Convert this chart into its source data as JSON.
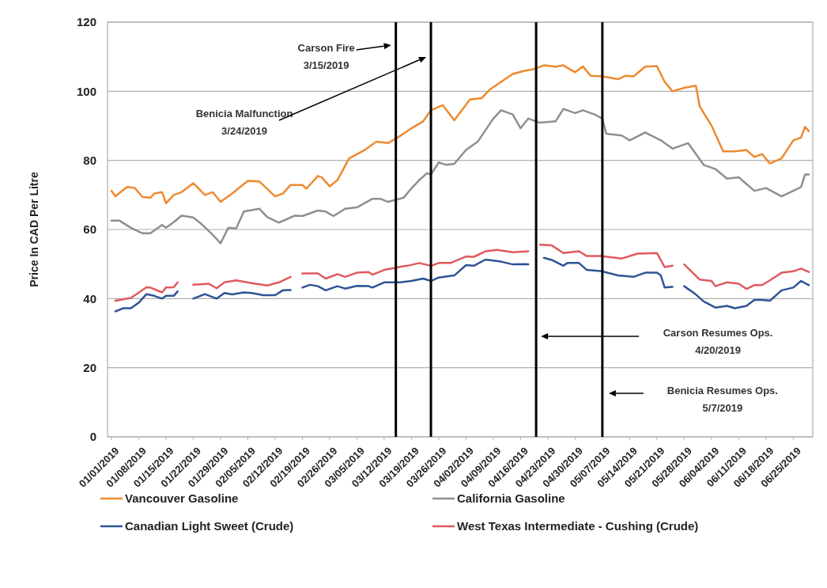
{
  "chart_data": {
    "type": "line",
    "ylabel": "Price In CAD Per Litre",
    "xlim": [
      "2018-12-31",
      "2019-06-30"
    ],
    "ylim": [
      0,
      120
    ],
    "yticks": [
      0,
      20,
      40,
      60,
      80,
      100,
      120
    ],
    "xticks": [
      {
        "value": "2019-01-01",
        "label": "01/01/2019"
      },
      {
        "value": "2019-01-08",
        "label": "01/08/2019"
      },
      {
        "value": "2019-01-15",
        "label": "01/15/2019"
      },
      {
        "value": "2019-01-22",
        "label": "01/22/2019"
      },
      {
        "value": "2019-01-29",
        "label": "01/29/2019"
      },
      {
        "value": "2019-02-05",
        "label": "02/05/2019"
      },
      {
        "value": "2019-02-12",
        "label": "02/12/2019"
      },
      {
        "value": "2019-02-19",
        "label": "02/19/2019"
      },
      {
        "value": "2019-02-26",
        "label": "02/26/2019"
      },
      {
        "value": "2019-03-05",
        "label": "03/05/2019"
      },
      {
        "value": "2019-03-12",
        "label": "03/12/2019"
      },
      {
        "value": "2019-03-19",
        "label": "03/19/2019"
      },
      {
        "value": "2019-03-26",
        "label": "03/26/2019"
      },
      {
        "value": "2019-04-02",
        "label": "04/02/2019"
      },
      {
        "value": "2019-04-09",
        "label": "04/09/2019"
      },
      {
        "value": "2019-04-16",
        "label": "04/16/2019"
      },
      {
        "value": "2019-04-23",
        "label": "04/23/2019"
      },
      {
        "value": "2019-04-30",
        "label": "04/30/2019"
      },
      {
        "value": "2019-05-07",
        "label": "05/07/2019"
      },
      {
        "value": "2019-05-14",
        "label": "05/14/2019"
      },
      {
        "value": "2019-05-21",
        "label": "05/21/2019"
      },
      {
        "value": "2019-05-28",
        "label": "05/28/2019"
      },
      {
        "value": "2019-06-04",
        "label": "06/04/2019"
      },
      {
        "value": "2019-06-11",
        "label": "06/11/2019"
      },
      {
        "value": "2019-06-18",
        "label": "06/18/2019"
      },
      {
        "value": "2019-06-25",
        "label": "06/25/2019"
      }
    ],
    "grid": "y",
    "legend": "bottom",
    "line_style": "solid",
    "marker": "none",
    "series": [
      {
        "name": "Vancouver Gasoline",
        "color": "#ee8a2f",
        "x": [
          "2019-01-01",
          "2019-01-02",
          "2019-01-05",
          "2019-01-07",
          "2019-01-09",
          "2019-01-11",
          "2019-01-12",
          "2019-01-14",
          "2019-01-15",
          "2019-01-17",
          "2019-01-19",
          "2019-01-22",
          "2019-01-25",
          "2019-01-27",
          "2019-01-29",
          "2019-02-01",
          "2019-02-05",
          "2019-02-08",
          "2019-02-12",
          "2019-02-14",
          "2019-02-16",
          "2019-02-19",
          "2019-02-20",
          "2019-02-23",
          "2019-02-24",
          "2019-02-26",
          "2019-02-28",
          "2019-03-03",
          "2019-03-07",
          "2019-03-10",
          "2019-03-13",
          "2019-03-16",
          "2019-03-19",
          "2019-03-22",
          "2019-03-24",
          "2019-03-27",
          "2019-03-30",
          "2019-04-03",
          "2019-04-06",
          "2019-04-08",
          "2019-04-11",
          "2019-04-14",
          "2019-04-17",
          "2019-04-19",
          "2019-04-22",
          "2019-04-25",
          "2019-04-27",
          "2019-04-30",
          "2019-05-02",
          "2019-05-04",
          "2019-05-07",
          "2019-05-11",
          "2019-05-13",
          "2019-05-15",
          "2019-05-18",
          "2019-05-21",
          "2019-05-23",
          "2019-05-25",
          "2019-05-28",
          "2019-05-31",
          "2019-06-01",
          "2019-06-04",
          "2019-06-07",
          "2019-06-10",
          "2019-06-13",
          "2019-06-15",
          "2019-06-17",
          "2019-06-19",
          "2019-06-22",
          "2019-06-25",
          "2019-06-27",
          "2019-06-28",
          "2019-06-29"
        ],
        "values": [
          71.2,
          69.6,
          72.3,
          72,
          69.4,
          69.2,
          70.4,
          70.8,
          67.6,
          70,
          70.8,
          73.4,
          70,
          70.8,
          68,
          70.4,
          74.1,
          73.9,
          69.6,
          70.4,
          72.9,
          72.9,
          71.8,
          75.5,
          75.1,
          72.5,
          74.3,
          80.6,
          83,
          85.4,
          85,
          87,
          89.3,
          91.3,
          94.5,
          96,
          91.6,
          97.6,
          98,
          100.4,
          102.7,
          105,
          105.9,
          106.3,
          107.5,
          107.1,
          107.5,
          105.5,
          107.2,
          104.5,
          104.3,
          103.5,
          104.5,
          104.3,
          107.1,
          107.3,
          102.7,
          100,
          101,
          101.6,
          95.6,
          90.1,
          82.6,
          82.6,
          83,
          81,
          81.8,
          79.1,
          80.6,
          85.8,
          86.6,
          89.7,
          88.5
        ]
      },
      {
        "name": "California Gasoline",
        "color": "#8f8f8f",
        "x": [
          "2019-01-01",
          "2019-01-03",
          "2019-01-06",
          "2019-01-09",
          "2019-01-11",
          "2019-01-14",
          "2019-01-15",
          "2019-01-17",
          "2019-01-19",
          "2019-01-22",
          "2019-01-24",
          "2019-01-27",
          "2019-01-29",
          "2019-01-31",
          "2019-02-02",
          "2019-02-04",
          "2019-02-08",
          "2019-02-10",
          "2019-02-13",
          "2019-02-17",
          "2019-02-19",
          "2019-02-23",
          "2019-02-25",
          "2019-02-27",
          "2019-03-02",
          "2019-03-05",
          "2019-03-09",
          "2019-03-11",
          "2019-03-13",
          "2019-03-17",
          "2019-03-19",
          "2019-03-21",
          "2019-03-23",
          "2019-03-24",
          "2019-03-26",
          "2019-03-28",
          "2019-03-30",
          "2019-04-02",
          "2019-04-05",
          "2019-04-09",
          "2019-04-11",
          "2019-04-14",
          "2019-04-16",
          "2019-04-18",
          "2019-04-21",
          "2019-04-25",
          "2019-04-27",
          "2019-04-30",
          "2019-05-02",
          "2019-05-05",
          "2019-05-07",
          "2019-05-08",
          "2019-05-12",
          "2019-05-14",
          "2019-05-18",
          "2019-05-22",
          "2019-05-25",
          "2019-05-29",
          "2019-06-02",
          "2019-06-05",
          "2019-06-08",
          "2019-06-11",
          "2019-06-15",
          "2019-06-18",
          "2019-06-22",
          "2019-06-27",
          "2019-06-28",
          "2019-06-29"
        ],
        "values": [
          62.6,
          62.6,
          60.5,
          58.9,
          58.9,
          61.3,
          60.5,
          62.1,
          64,
          63.5,
          61.7,
          58.5,
          56,
          60.5,
          60.3,
          65.2,
          66,
          63.6,
          62,
          64,
          63.9,
          65.5,
          65.2,
          63.9,
          66,
          66.4,
          68.9,
          68.9,
          68,
          69.2,
          71.9,
          74.3,
          76.3,
          75.9,
          79.4,
          78.7,
          79,
          83,
          85.4,
          92.1,
          94.5,
          93.3,
          89.3,
          92.1,
          90.9,
          91.3,
          94.9,
          93.7,
          94.5,
          93.3,
          92.1,
          87.7,
          87.2,
          85.8,
          88.1,
          85.8,
          83.4,
          85,
          78.7,
          77.5,
          74.7,
          75.1,
          71.2,
          72,
          69.6,
          72.3,
          75.9,
          75.9
        ]
      },
      {
        "name": "Canadian Light Sweet (Crude)",
        "color": "#2f5496",
        "x": [
          "2019-01-02",
          "2019-01-04",
          "2019-01-06",
          "2019-01-08",
          "2019-01-10",
          "2019-01-12",
          "2019-01-14",
          "2019-01-15",
          "2019-01-17",
          "2019-01-18",
          "2019-01-20",
          "2019-01-22",
          "2019-01-25",
          "2019-01-28",
          "2019-01-30",
          "2019-02-01",
          "2019-02-04",
          "2019-02-06",
          "2019-02-09",
          "2019-02-12",
          "2019-02-14",
          "2019-02-16",
          "2019-02-18",
          "2019-02-19",
          "2019-02-21",
          "2019-02-23",
          "2019-02-25",
          "2019-02-28",
          "2019-03-02",
          "2019-03-05",
          "2019-03-08",
          "2019-03-09",
          "2019-03-12",
          "2019-03-16",
          "2019-03-19",
          "2019-03-22",
          "2019-03-24",
          "2019-03-26",
          "2019-03-30",
          "2019-04-02",
          "2019-04-04",
          "2019-04-07",
          "2019-04-11",
          "2019-04-14",
          "2019-04-17",
          "2019-04-18",
          "2019-04-19",
          "2019-04-22",
          "2019-04-24",
          "2019-04-27",
          "2019-04-28",
          "2019-05-01",
          "2019-05-03",
          "2019-05-07",
          "2019-05-11",
          "2019-05-15",
          "2019-05-18",
          "2019-05-21",
          "2019-05-22",
          "2019-05-23",
          "2019-05-25",
          "2019-05-27",
          "2019-05-28",
          "2019-05-31",
          "2019-06-02",
          "2019-06-05",
          "2019-06-08",
          "2019-06-10",
          "2019-06-13",
          "2019-06-15",
          "2019-06-17",
          "2019-06-19",
          "2019-06-22",
          "2019-06-25",
          "2019-06-27",
          "2019-06-29"
        ],
        "values": [
          36.3,
          37.2,
          37.2,
          38.8,
          41.3,
          40.8,
          40,
          40.8,
          40.8,
          42.1,
          null,
          40,
          41.3,
          40,
          41.6,
          41.2,
          41.8,
          41.6,
          41,
          41,
          42.4,
          42.5,
          null,
          43.2,
          44,
          43.6,
          42.4,
          43.6,
          42.9,
          43.7,
          43.6,
          43.2,
          44.7,
          44.7,
          45.1,
          45.8,
          45.1,
          46.1,
          46.7,
          49.7,
          49.5,
          51.3,
          50.7,
          49.9,
          50,
          49.9,
          null,
          51.8,
          51.2,
          49.5,
          50.3,
          50.3,
          48.3,
          47.9,
          46.7,
          46.3,
          47.5,
          47.5,
          46.7,
          43.2,
          43.4,
          null,
          43.6,
          41.2,
          39.2,
          37.4,
          37.9,
          37.2,
          37.9,
          39.6,
          39.6,
          39.4,
          42.4,
          43.2,
          45.1,
          43.9
        ]
      },
      {
        "name": "West Texas Intermediate - Cushing (Crude)",
        "color": "#e05a5e",
        "x": [
          "2019-01-02",
          "2019-01-06",
          "2019-01-10",
          "2019-01-11",
          "2019-01-14",
          "2019-01-15",
          "2019-01-17",
          "2019-01-18",
          "2019-01-20",
          "2019-01-22",
          "2019-01-26",
          "2019-01-28",
          "2019-01-30",
          "2019-02-02",
          "2019-02-06",
          "2019-02-10",
          "2019-02-13",
          "2019-02-16",
          "2019-02-18",
          "2019-02-19",
          "2019-02-23",
          "2019-02-25",
          "2019-02-28",
          "2019-03-02",
          "2019-03-05",
          "2019-03-08",
          "2019-03-09",
          "2019-03-12",
          "2019-03-16",
          "2019-03-18",
          "2019-03-21",
          "2019-03-24",
          "2019-03-26",
          "2019-03-29",
          "2019-04-02",
          "2019-04-04",
          "2019-04-07",
          "2019-04-10",
          "2019-04-14",
          "2019-04-18",
          "2019-04-19",
          "2019-04-21",
          "2019-04-24",
          "2019-04-27",
          "2019-05-01",
          "2019-05-03",
          "2019-05-07",
          "2019-05-12",
          "2019-05-16",
          "2019-05-21",
          "2019-05-23",
          "2019-05-25",
          "2019-05-27",
          "2019-05-28",
          "2019-06-01",
          "2019-06-04",
          "2019-06-05",
          "2019-06-08",
          "2019-06-11",
          "2019-06-13",
          "2019-06-15",
          "2019-06-17",
          "2019-06-19",
          "2019-06-22",
          "2019-06-25",
          "2019-06-27",
          "2019-06-29"
        ],
        "values": [
          39.4,
          40.2,
          43.3,
          43.2,
          41.8,
          43.2,
          43.3,
          44.7,
          null,
          44,
          44.3,
          43,
          44.7,
          45.3,
          44.5,
          43.8,
          44.7,
          46.3,
          null,
          47.3,
          47.3,
          45.8,
          47.1,
          46.3,
          47.5,
          47.7,
          46.9,
          48.3,
          49.2,
          49.5,
          50.3,
          49.5,
          50.3,
          50.3,
          52.2,
          52.1,
          53.7,
          54.1,
          53.4,
          53.7,
          null,
          55.6,
          55.4,
          53.2,
          53.7,
          52.3,
          52.3,
          51.6,
          53,
          53.2,
          49.1,
          49.5,
          null,
          49.9,
          45.5,
          45.1,
          43.6,
          44.7,
          44.3,
          42.8,
          43.9,
          43.9,
          45.3,
          47.5,
          47.9,
          48.7,
          47.7
        ]
      }
    ],
    "ref_lines": [
      {
        "axis": "x",
        "value": "2019-03-15",
        "color": "#000000"
      },
      {
        "axis": "x",
        "value": "2019-03-24",
        "color": "#000000"
      },
      {
        "axis": "x",
        "value": "2019-04-20",
        "color": "#000000"
      },
      {
        "axis": "x",
        "value": "2019-05-07",
        "color": "#000000"
      }
    ],
    "annotations": [
      "Carson Fire\n3/15/2019",
      "Benicia Malfunction\n3/24/2019",
      "Carson Resumes Ops.\n4/20/2019",
      "Benicia Resumes Ops.\n5/7/2019"
    ]
  }
}
